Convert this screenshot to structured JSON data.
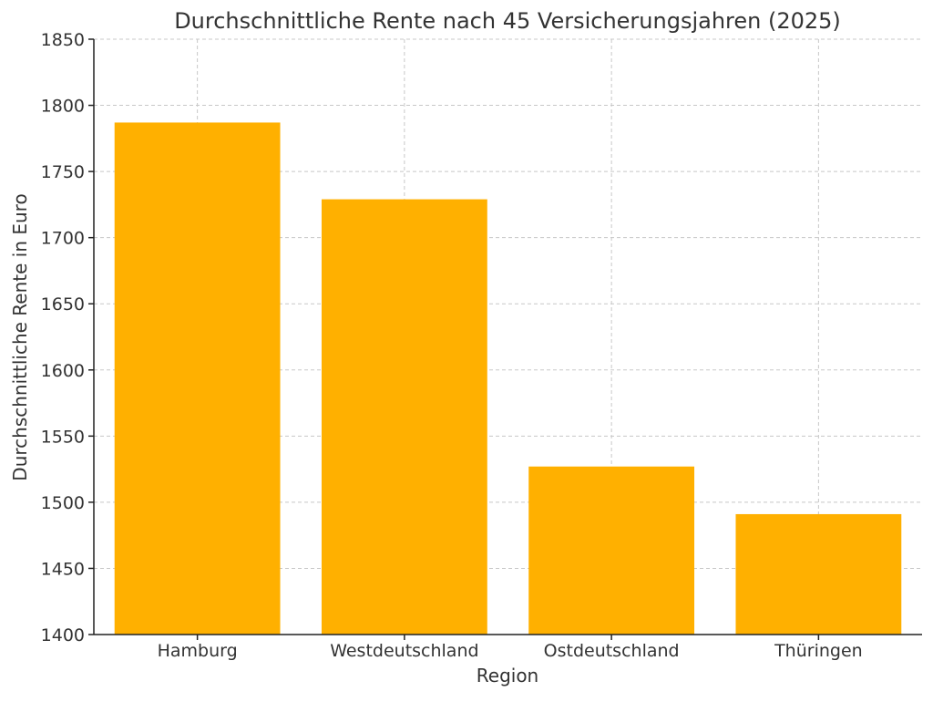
{
  "chart_data": {
    "type": "bar",
    "title": "Durchschnittliche Rente nach 45 Versicherungsjahren (2025)",
    "xlabel": "Region",
    "ylabel": "Durchschnittliche Rente in Euro",
    "categories": [
      "Hamburg",
      "Westdeutschland",
      "Ostdeutschland",
      "Thüringen"
    ],
    "values": [
      1787,
      1729,
      1527,
      1491
    ],
    "ylim": [
      1400,
      1850
    ],
    "yticks": [
      1400,
      1450,
      1500,
      1550,
      1600,
      1650,
      1700,
      1750,
      1800,
      1850
    ],
    "grid": true,
    "bar_color": "#ffb000"
  }
}
